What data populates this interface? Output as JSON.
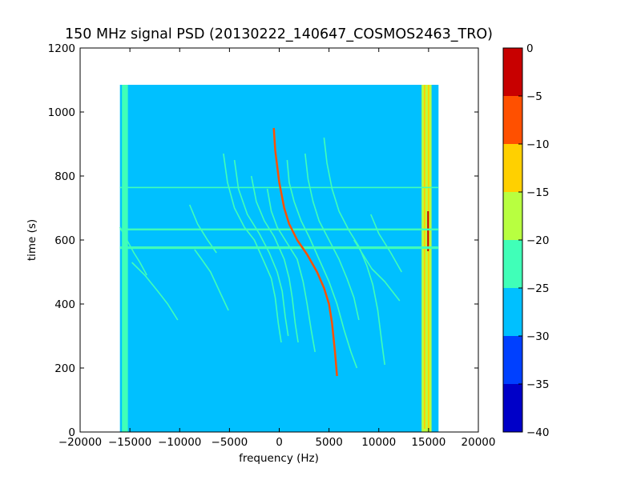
{
  "chart_data": {
    "type": "heatmap",
    "title": "150 MHz signal PSD (20130222_140647_COSMOS2463_TRO)",
    "xlabel": "frequency (Hz)",
    "ylabel": "time (s)",
    "xlim": [
      -20000,
      20000
    ],
    "ylim": [
      0,
      1200
    ],
    "xticks": [
      -20000,
      -15000,
      -10000,
      -5000,
      0,
      5000,
      10000,
      15000,
      20000
    ],
    "xtick_labels": [
      "−20000",
      "−15000",
      "−10000",
      "−5000",
      "0",
      "5000",
      "10000",
      "15000",
      "20000"
    ],
    "yticks": [
      0,
      200,
      400,
      600,
      800,
      1000,
      1200
    ],
    "ytick_labels": [
      "0",
      "200",
      "400",
      "600",
      "800",
      "1000",
      "1200"
    ],
    "data_extent": {
      "x": [
        -16000,
        16000
      ],
      "y": [
        0,
        1085
      ]
    },
    "background_level": -27.5,
    "colorbar": {
      "range": [
        -40,
        0
      ],
      "ticks": [
        0,
        -5,
        -10,
        -15,
        -20,
        -25,
        -30,
        -35,
        -40
      ],
      "tick_labels": [
        "0",
        "−5",
        "−10",
        "−15",
        "−20",
        "−25",
        "−30",
        "−35",
        "−40"
      ],
      "bands": [
        {
          "from": -40,
          "to": -35,
          "color": "#0000c8"
        },
        {
          "from": -35,
          "to": -30,
          "color": "#0040ff"
        },
        {
          "from": -30,
          "to": -25,
          "color": "#00c0ff"
        },
        {
          "from": -25,
          "to": -20,
          "color": "#40ffb8"
        },
        {
          "from": -20,
          "to": -15,
          "color": "#b8ff40"
        },
        {
          "from": -15,
          "to": -10,
          "color": "#ffd000"
        },
        {
          "from": -10,
          "to": -5,
          "color": "#ff5000"
        },
        {
          "from": -5,
          "to": 0,
          "color": "#c80000"
        }
      ]
    },
    "features": [
      {
        "kind": "vertical_band",
        "x_range": [
          14300,
          15300
        ],
        "y_range": [
          0,
          1085
        ],
        "level": -17.5
      },
      {
        "kind": "vertical_line",
        "x": 14600,
        "y_range": [
          10,
          1085
        ],
        "level": -12.5
      },
      {
        "kind": "vertical_line",
        "x": 15000,
        "y_range": [
          10,
          1085
        ],
        "level": -12.5
      },
      {
        "kind": "vertical_line",
        "x": 14950,
        "y_range": [
          565,
          690
        ],
        "level": -2.5
      },
      {
        "kind": "vertical_band",
        "x_range": [
          -15800,
          -15200
        ],
        "y_range": [
          0,
          1085
        ],
        "level": -22.5
      },
      {
        "kind": "horizontal_band",
        "x_range": [
          -16000,
          16000
        ],
        "y_range": [
          572,
          580
        ],
        "level": -22.5
      },
      {
        "kind": "horizontal_band",
        "x_range": [
          -16000,
          16000
        ],
        "y_range": [
          630,
          636
        ],
        "level": -22.5
      },
      {
        "kind": "horizontal_band",
        "x_range": [
          -16000,
          16000
        ],
        "y_range": [
          762,
          766
        ],
        "level": -22.5
      }
    ],
    "curves": [
      {
        "level": -7.5,
        "points": [
          [
            -550,
            950
          ],
          [
            -400,
            880
          ],
          [
            0,
            780
          ],
          [
            500,
            700
          ],
          [
            1000,
            650
          ],
          [
            1800,
            600
          ],
          [
            2800,
            555
          ],
          [
            3800,
            500
          ],
          [
            4500,
            450
          ],
          [
            5000,
            400
          ],
          [
            5300,
            340
          ],
          [
            5600,
            250
          ],
          [
            5800,
            175
          ]
        ]
      },
      {
        "level": -22.5,
        "points": [
          [
            800,
            850
          ],
          [
            1000,
            780
          ],
          [
            1500,
            720
          ],
          [
            2200,
            660
          ],
          [
            3000,
            610
          ],
          [
            4000,
            540
          ],
          [
            5000,
            470
          ],
          [
            5800,
            400
          ],
          [
            6500,
            320
          ],
          [
            7200,
            250
          ],
          [
            7800,
            200
          ]
        ]
      },
      {
        "level": -22.5,
        "points": [
          [
            -1200,
            760
          ],
          [
            -800,
            690
          ],
          [
            -200,
            640
          ],
          [
            800,
            590
          ],
          [
            1800,
            540
          ],
          [
            2400,
            470
          ],
          [
            2800,
            400
          ],
          [
            3200,
            320
          ],
          [
            3600,
            250
          ]
        ]
      },
      {
        "level": -22.5,
        "points": [
          [
            -2800,
            800
          ],
          [
            -2300,
            720
          ],
          [
            -1500,
            660
          ],
          [
            -500,
            610
          ],
          [
            500,
            540
          ],
          [
            1000,
            480
          ],
          [
            1300,
            420
          ],
          [
            1600,
            340
          ],
          [
            1900,
            280
          ]
        ]
      },
      {
        "level": -22.5,
        "points": [
          [
            -4500,
            850
          ],
          [
            -4100,
            760
          ],
          [
            -3200,
            680
          ],
          [
            -2000,
            620
          ],
          [
            -1000,
            560
          ],
          [
            -200,
            500
          ],
          [
            300,
            440
          ],
          [
            600,
            360
          ],
          [
            900,
            300
          ]
        ]
      },
      {
        "level": -22.5,
        "points": [
          [
            -5600,
            870
          ],
          [
            -5200,
            780
          ],
          [
            -4500,
            700
          ],
          [
            -3500,
            640
          ],
          [
            -2500,
            600
          ],
          [
            -1500,
            530
          ],
          [
            -800,
            480
          ],
          [
            -400,
            420
          ],
          [
            -100,
            340
          ],
          [
            200,
            280
          ]
        ]
      },
      {
        "level": -22.5,
        "points": [
          [
            2600,
            870
          ],
          [
            2900,
            790
          ],
          [
            3400,
            720
          ],
          [
            4000,
            660
          ],
          [
            5000,
            600
          ],
          [
            6000,
            540
          ],
          [
            6800,
            480
          ],
          [
            7500,
            420
          ],
          [
            8000,
            350
          ]
        ]
      },
      {
        "level": -22.5,
        "points": [
          [
            4500,
            920
          ],
          [
            4800,
            840
          ],
          [
            5300,
            760
          ],
          [
            6000,
            690
          ],
          [
            7000,
            630
          ],
          [
            8000,
            580
          ],
          [
            8800,
            520
          ],
          [
            9400,
            460
          ],
          [
            9900,
            380
          ],
          [
            10300,
            280
          ],
          [
            10600,
            210
          ]
        ]
      },
      {
        "level": -22.5,
        "points": [
          [
            -16000,
            640
          ],
          [
            -15300,
            600
          ],
          [
            -14600,
            560
          ],
          [
            -14000,
            530
          ],
          [
            -13300,
            490
          ]
        ]
      },
      {
        "level": -22.5,
        "points": [
          [
            -14800,
            530
          ],
          [
            -13500,
            490
          ],
          [
            -12200,
            440
          ],
          [
            -11200,
            400
          ],
          [
            -10200,
            350
          ]
        ]
      },
      {
        "level": -22.5,
        "points": [
          [
            -8500,
            570
          ],
          [
            -7800,
            540
          ],
          [
            -6900,
            500
          ],
          [
            -6000,
            440
          ],
          [
            -5100,
            380
          ]
        ]
      },
      {
        "level": -22.5,
        "points": [
          [
            7500,
            600
          ],
          [
            8300,
            560
          ],
          [
            9300,
            510
          ],
          [
            10600,
            470
          ],
          [
            12100,
            410
          ]
        ]
      },
      {
        "level": -22.5,
        "points": [
          [
            -9000,
            710
          ],
          [
            -8200,
            650
          ],
          [
            -7200,
            600
          ],
          [
            -6300,
            560
          ]
        ]
      },
      {
        "level": -22.5,
        "points": [
          [
            9200,
            680
          ],
          [
            10000,
            620
          ],
          [
            11200,
            560
          ],
          [
            12300,
            500
          ]
        ]
      }
    ]
  }
}
